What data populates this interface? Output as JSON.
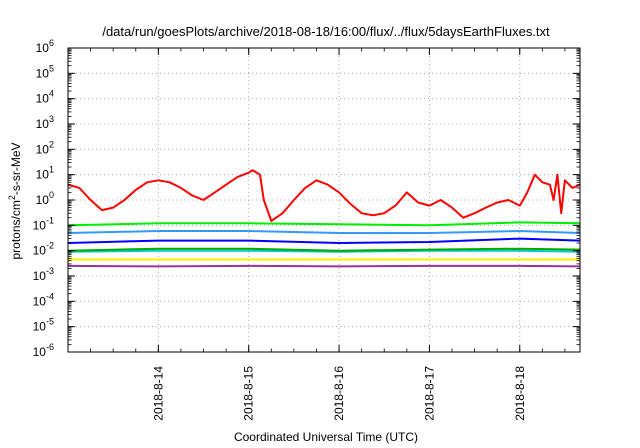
{
  "chart_data": {
    "type": "line",
    "title": "/data/run/goesPlots/archive/2018-08-18/16:00/flux/../flux/5daysEarthFluxes.txt",
    "xlabel": "Coordinated Universal Time (UTC)",
    "ylabel": {
      "prefix": "protons/cm",
      "sup": "2",
      "suffix": "-s-sr-MeV"
    },
    "y_scale": "log",
    "ylim": [
      1e-06,
      1000000.0
    ],
    "y_ticks": [
      {
        "base": "10",
        "exp": "-6",
        "value": 1e-06
      },
      {
        "base": "10",
        "exp": "-5",
        "value": 1e-05
      },
      {
        "base": "10",
        "exp": "-4",
        "value": 0.0001
      },
      {
        "base": "10",
        "exp": "-3",
        "value": 0.001
      },
      {
        "base": "10",
        "exp": "-2",
        "value": 0.01
      },
      {
        "base": "10",
        "exp": "-1",
        "value": 0.1
      },
      {
        "base": "10",
        "exp": "0",
        "value": 1
      },
      {
        "base": "10",
        "exp": "1",
        "value": 10
      },
      {
        "base": "10",
        "exp": "2",
        "value": 100
      },
      {
        "base": "10",
        "exp": "3",
        "value": 1000
      },
      {
        "base": "10",
        "exp": "4",
        "value": 10000
      },
      {
        "base": "10",
        "exp": "5",
        "value": 100000
      },
      {
        "base": "10",
        "exp": "6",
        "value": 1000000
      }
    ],
    "xlim": [
      "2018-08-13 00:00",
      "2018-08-18 16:00"
    ],
    "x_ticks": [
      "2018-8-14",
      "2018-8-15",
      "2018-8-16",
      "2018-8-17",
      "2018-8-18"
    ],
    "x_tick_dates": [
      "2018-08-14 00:00",
      "2018-08-15 00:00",
      "2018-08-16 00:00",
      "2018-08-17 00:00",
      "2018-08-18 00:00"
    ],
    "grid": true,
    "legend": "none",
    "series": [
      {
        "color": "#ff0000",
        "x": [
          "2018-08-13 00:00",
          "2018-08-13 03:00",
          "2018-08-13 06:00",
          "2018-08-13 09:00",
          "2018-08-13 12:00",
          "2018-08-13 15:00",
          "2018-08-13 18:00",
          "2018-08-13 21:00",
          "2018-08-14 00:00",
          "2018-08-14 03:00",
          "2018-08-14 06:00",
          "2018-08-14 09:00",
          "2018-08-14 12:00",
          "2018-08-14 15:00",
          "2018-08-14 18:00",
          "2018-08-14 21:00",
          "2018-08-15 00:00",
          "2018-08-15 01:00",
          "2018-08-15 03:00",
          "2018-08-15 04:00",
          "2018-08-15 06:00",
          "2018-08-15 09:00",
          "2018-08-15 12:00",
          "2018-08-15 15:00",
          "2018-08-15 18:00",
          "2018-08-15 21:00",
          "2018-08-16 00:00",
          "2018-08-16 03:00",
          "2018-08-16 06:00",
          "2018-08-16 09:00",
          "2018-08-16 12:00",
          "2018-08-16 15:00",
          "2018-08-16 18:00",
          "2018-08-16 21:00",
          "2018-08-17 00:00",
          "2018-08-17 03:00",
          "2018-08-17 06:00",
          "2018-08-17 09:00",
          "2018-08-17 12:00",
          "2018-08-17 15:00",
          "2018-08-17 18:00",
          "2018-08-17 21:00",
          "2018-08-18 00:00",
          "2018-08-18 02:00",
          "2018-08-18 04:00",
          "2018-08-18 06:00",
          "2018-08-18 08:00",
          "2018-08-18 09:00",
          "2018-08-18 10:00",
          "2018-08-18 11:00",
          "2018-08-18 12:00",
          "2018-08-18 14:00",
          "2018-08-18 16:00"
        ],
        "y": [
          4,
          3,
          1,
          0.4,
          0.5,
          1,
          2.5,
          5,
          6,
          5,
          3,
          1.5,
          1,
          2,
          4,
          8,
          12,
          15,
          10,
          1,
          0.15,
          0.3,
          1,
          3,
          6,
          4,
          2,
          0.7,
          0.3,
          0.25,
          0.3,
          0.6,
          2,
          0.8,
          0.6,
          1,
          0.5,
          0.2,
          0.3,
          0.5,
          0.8,
          1,
          0.6,
          2,
          10,
          5,
          4,
          1,
          10,
          0.3,
          6,
          3,
          4
        ]
      },
      {
        "color": "#00ee00",
        "x": [
          "2018-08-13 00:00",
          "2018-08-14 00:00",
          "2018-08-15 00:00",
          "2018-08-16 00:00",
          "2018-08-17 00:00",
          "2018-08-18 00:00",
          "2018-08-18 16:00"
        ],
        "y": [
          0.1,
          0.12,
          0.12,
          0.11,
          0.1,
          0.13,
          0.12
        ]
      },
      {
        "color": "#3399ff",
        "x": [
          "2018-08-13 00:00",
          "2018-08-14 00:00",
          "2018-08-15 00:00",
          "2018-08-16 00:00",
          "2018-08-17 00:00",
          "2018-08-18 00:00",
          "2018-08-18 16:00"
        ],
        "y": [
          0.05,
          0.06,
          0.06,
          0.05,
          0.05,
          0.06,
          0.05
        ]
      },
      {
        "color": "#0000ff",
        "x": [
          "2018-08-13 00:00",
          "2018-08-14 00:00",
          "2018-08-15 00:00",
          "2018-08-16 00:00",
          "2018-08-17 00:00",
          "2018-08-18 00:00",
          "2018-08-18 16:00"
        ],
        "y": [
          0.02,
          0.025,
          0.025,
          0.02,
          0.022,
          0.03,
          0.025
        ]
      },
      {
        "color": "#00aa00",
        "x": [
          "2018-08-13 00:00",
          "2018-08-14 00:00",
          "2018-08-15 00:00",
          "2018-08-16 00:00",
          "2018-08-17 00:00",
          "2018-08-18 00:00",
          "2018-08-18 16:00"
        ],
        "y": [
          0.01,
          0.012,
          0.012,
          0.01,
          0.011,
          0.012,
          0.011
        ]
      },
      {
        "color": "#00cccc",
        "x": [
          "2018-08-13 00:00",
          "2018-08-14 00:00",
          "2018-08-15 00:00",
          "2018-08-16 00:00",
          "2018-08-17 00:00",
          "2018-08-18 00:00",
          "2018-08-18 16:00"
        ],
        "y": [
          0.009,
          0.01,
          0.01,
          0.009,
          0.01,
          0.01,
          0.009
        ]
      },
      {
        "color": "#ffee00",
        "x": [
          "2018-08-13 00:00",
          "2018-08-14 00:00",
          "2018-08-15 00:00",
          "2018-08-16 00:00",
          "2018-08-17 00:00",
          "2018-08-18 00:00",
          "2018-08-18 16:00"
        ],
        "y": [
          0.0045,
          0.0045,
          0.0045,
          0.0045,
          0.0045,
          0.0045,
          0.0045
        ]
      },
      {
        "color": "#993399",
        "x": [
          "2018-08-13 00:00",
          "2018-08-14 00:00",
          "2018-08-15 00:00",
          "2018-08-16 00:00",
          "2018-08-17 00:00",
          "2018-08-18 00:00",
          "2018-08-18 16:00"
        ],
        "y": [
          0.0025,
          0.0024,
          0.0025,
          0.0024,
          0.0025,
          0.0025,
          0.0024
        ]
      }
    ]
  }
}
